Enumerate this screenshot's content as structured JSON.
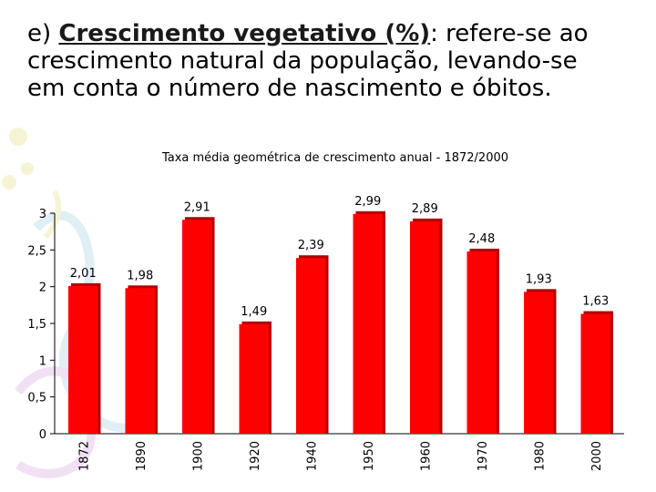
{
  "slide": {
    "prefix": "e) ",
    "term": "Crescimento vegetativo (%)",
    "line1_rest": ": refere-se ao",
    "line2": "crescimento natural da população, levando-se",
    "line3": "em conta o número de nascimento e óbitos."
  },
  "colors": {
    "bar": "#ff0000",
    "bar_shade": "#b30000",
    "text": "#000000",
    "axis": "#000000"
  },
  "decoration": {
    "icon": "flower-swirl-background"
  },
  "chart_data": {
    "type": "bar",
    "title": "Taxa média geométrica de crescimento anual - 1872/2000",
    "xlabel": "",
    "ylabel": "",
    "categories": [
      "1872",
      "1890",
      "1900",
      "1920",
      "1940",
      "1950",
      "1960",
      "1970",
      "1980",
      "2000"
    ],
    "values": [
      2.01,
      1.98,
      2.91,
      1.49,
      2.39,
      2.99,
      2.89,
      2.48,
      1.93,
      1.63
    ],
    "value_labels": [
      "2,01",
      "1,98",
      "2,91",
      "1,49",
      "2,39",
      "2,99",
      "2,89",
      "2,48",
      "1,93",
      "1,63"
    ],
    "ylim": [
      0,
      3
    ],
    "yticks": [
      0,
      0.5,
      1,
      1.5,
      2,
      2.5,
      3
    ],
    "ytick_labels": [
      "0",
      "0,5",
      "1",
      "1,5",
      "2",
      "2,5",
      "3"
    ],
    "grid": false,
    "legend": "none"
  }
}
